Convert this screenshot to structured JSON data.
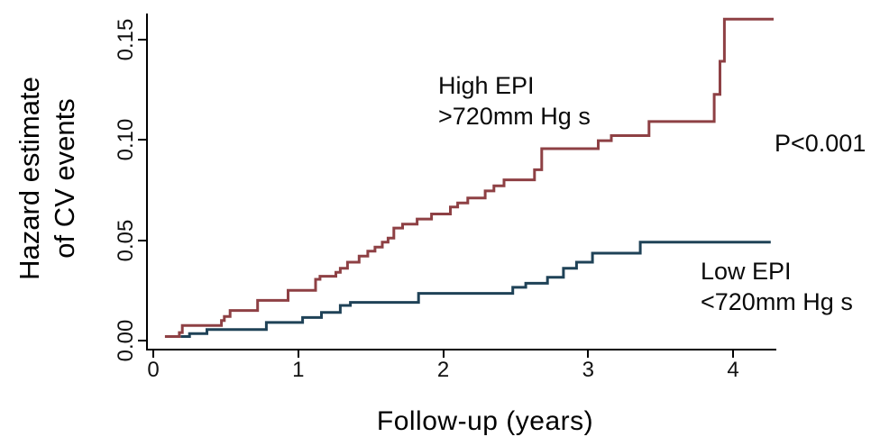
{
  "chart_data": {
    "type": "line",
    "subtype": "step (cumulative hazard estimate)",
    "title": "",
    "xlabel": "Follow-up (years)",
    "ylabel": "Hazard estimate of CV events",
    "ylabel_lines": [
      "Hazard estimate",
      "of CV events"
    ],
    "xlim": [
      0,
      4.3
    ],
    "ylim": [
      0,
      0.165
    ],
    "xticks": [
      0,
      1,
      2,
      3,
      4
    ],
    "xtick_labels": [
      "0",
      "1",
      "2",
      "3",
      "4"
    ],
    "ytick_values": [
      0,
      0.05,
      0.1,
      0.15
    ],
    "ytick_labels": [
      "0.00",
      "0.05",
      "0.10",
      "0.15"
    ],
    "grid": false,
    "background_color": "#ffffff",
    "axis_color": "#000000",
    "legend_position": "inline annotations",
    "annotations": [
      {
        "text": "P<0.001"
      }
    ],
    "series": [
      {
        "name": "High EPI >720mm Hg s",
        "label_lines": [
          "High EPI",
          ">720mm Hg s"
        ],
        "color": "#8e4044",
        "end_x": 4.28,
        "points": [
          [
            0.08,
            0.002
          ],
          [
            0.18,
            0.004
          ],
          [
            0.2,
            0.0075
          ],
          [
            0.47,
            0.01
          ],
          [
            0.49,
            0.012
          ],
          [
            0.53,
            0.015
          ],
          [
            0.72,
            0.02
          ],
          [
            0.93,
            0.025
          ],
          [
            1.12,
            0.0305
          ],
          [
            1.15,
            0.032
          ],
          [
            1.26,
            0.034
          ],
          [
            1.29,
            0.036
          ],
          [
            1.34,
            0.039
          ],
          [
            1.42,
            0.042
          ],
          [
            1.48,
            0.0445
          ],
          [
            1.53,
            0.0465
          ],
          [
            1.58,
            0.049
          ],
          [
            1.62,
            0.051
          ],
          [
            1.66,
            0.056
          ],
          [
            1.72,
            0.058
          ],
          [
            1.82,
            0.0605
          ],
          [
            1.92,
            0.063
          ],
          [
            2.05,
            0.0665
          ],
          [
            2.1,
            0.0685
          ],
          [
            2.17,
            0.071
          ],
          [
            2.29,
            0.0745
          ],
          [
            2.35,
            0.077
          ],
          [
            2.42,
            0.08
          ],
          [
            2.63,
            0.085
          ],
          [
            2.68,
            0.0955
          ],
          [
            3.07,
            0.0995
          ],
          [
            3.16,
            0.102
          ],
          [
            3.42,
            0.109
          ],
          [
            3.87,
            0.1225
          ],
          [
            3.91,
            0.139
          ],
          [
            3.94,
            0.16
          ]
        ]
      },
      {
        "name": "Low EPI <720mm Hg s",
        "label_lines": [
          "Low EPI",
          "<720mm Hg s"
        ],
        "color": "#1f4257",
        "end_x": 4.26,
        "points": [
          [
            0.19,
            0.002
          ],
          [
            0.25,
            0.0035
          ],
          [
            0.37,
            0.0055
          ],
          [
            0.78,
            0.009
          ],
          [
            1.03,
            0.0115
          ],
          [
            1.16,
            0.014
          ],
          [
            1.29,
            0.0175
          ],
          [
            1.36,
            0.019
          ],
          [
            1.83,
            0.0235
          ],
          [
            2.48,
            0.0265
          ],
          [
            2.57,
            0.0285
          ],
          [
            2.72,
            0.0315
          ],
          [
            2.83,
            0.036
          ],
          [
            2.92,
            0.039
          ],
          [
            3.03,
            0.0435
          ],
          [
            3.36,
            0.049
          ]
        ]
      }
    ]
  }
}
